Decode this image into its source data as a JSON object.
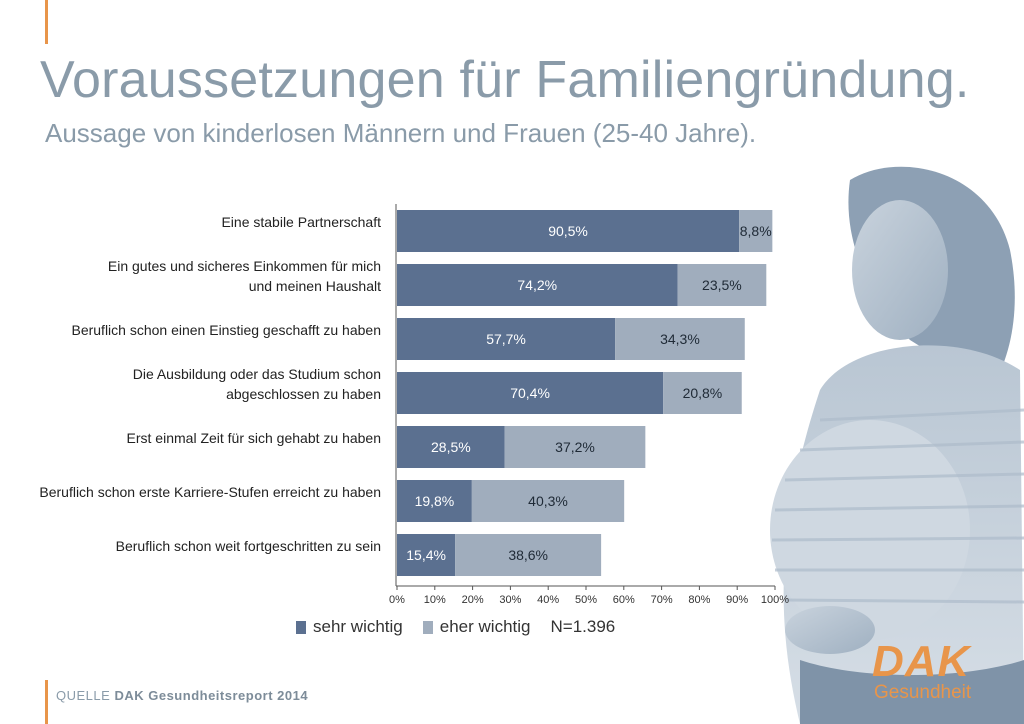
{
  "title": "Voraussetzungen für Familiengründung.",
  "subtitle": "Aussage von kinderlosen Männern und Frauen (25-40 Jahre).",
  "source_prefix": "QUELLE",
  "source_brand": "DAK",
  "source_text": "Gesundheitsreport 2014",
  "logo": {
    "name": "DAK",
    "sub": "Gesundheit"
  },
  "legend": {
    "n_label": "N=1.396"
  },
  "colors": {
    "sehr": "#5b7090",
    "eher": "#a0adbd",
    "accent": "#e8954a",
    "title": "#8a9ba9"
  },
  "chart_data": {
    "type": "bar",
    "orientation": "horizontal",
    "stacked": true,
    "categories": [
      [
        "Eine stabile Partnerschaft"
      ],
      [
        "Ein gutes und sicheres Einkommen für mich",
        "und meinen Haushalt"
      ],
      [
        "Beruflich schon einen Einstieg geschafft zu haben"
      ],
      [
        "Die Ausbildung oder das Studium schon",
        "abgeschlossen zu haben"
      ],
      [
        "Erst einmal Zeit für sich gehabt zu haben"
      ],
      [
        "Beruflich schon erste Karriere-Stufen erreicht zu haben"
      ],
      [
        "Beruflich schon weit fortgeschritten zu sein"
      ]
    ],
    "series": [
      {
        "name": "sehr wichtig",
        "values": [
          90.5,
          74.2,
          57.7,
          70.4,
          28.5,
          19.8,
          15.4
        ],
        "labels": [
          "90,5%",
          "74,2%",
          "57,7%",
          "70,4%",
          "28,5%",
          "19,8%",
          "15,4%"
        ]
      },
      {
        "name": "eher wichtig",
        "values": [
          8.8,
          23.5,
          34.3,
          20.8,
          37.2,
          40.3,
          38.6
        ],
        "labels": [
          "8,8%",
          "23,5%",
          "34,3%",
          "20,8%",
          "37,2%",
          "40,3%",
          "38,6%"
        ]
      }
    ],
    "xlim": [
      0,
      100
    ],
    "ticks": [
      "0%",
      "10%",
      "20%",
      "30%",
      "40%",
      "50%",
      "60%",
      "70%",
      "80%",
      "90%",
      "100%"
    ],
    "legend_position": "bottom"
  }
}
